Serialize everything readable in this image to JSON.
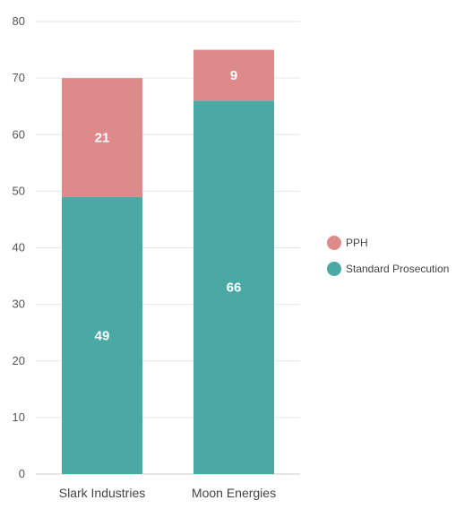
{
  "chart_data": {
    "type": "bar",
    "stacked": true,
    "categories": [
      "Slark Industries",
      "Moon Energies"
    ],
    "series": [
      {
        "name": "Standard Prosecution",
        "values": [
          49,
          66
        ],
        "color": "#4aa8a5"
      },
      {
        "name": "PPH",
        "values": [
          21,
          9
        ],
        "color": "#df8a8a"
      }
    ],
    "ylim": [
      0,
      80
    ],
    "yticks": [
      0,
      10,
      20,
      30,
      40,
      50,
      60,
      70,
      80
    ],
    "grid": true,
    "legend": "right",
    "legend_order": [
      "PPH",
      "Standard Prosecution"
    ],
    "data_labels": true
  }
}
